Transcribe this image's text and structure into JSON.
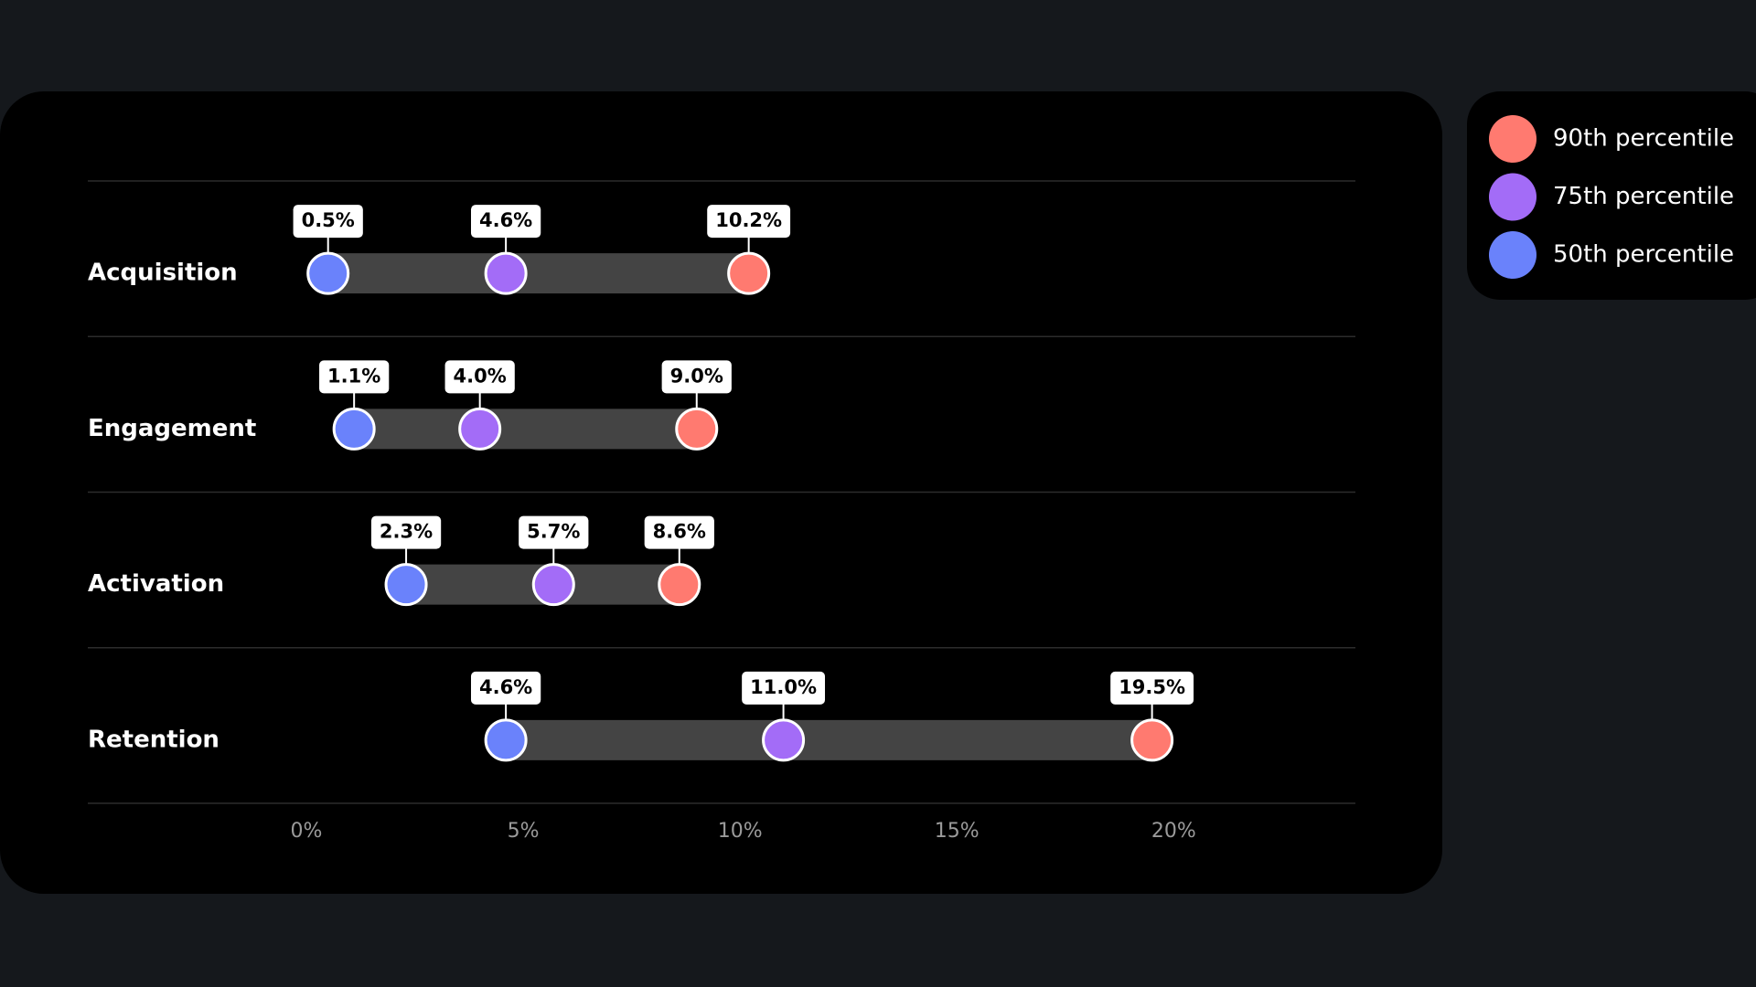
{
  "chart_data": {
    "type": "dumbbell",
    "categories": [
      "Acquisition",
      "Engagement",
      "Activation",
      "Retention"
    ],
    "series": [
      {
        "name": "90th percentile",
        "color": "#ff7a70",
        "values": [
          10.2,
          9.0,
          8.6,
          19.5
        ],
        "value_labels": [
          "10.2%",
          "9.0%",
          "8.6%",
          "19.5%"
        ]
      },
      {
        "name": "75th percentile",
        "color": "#a36cf7",
        "values": [
          4.6,
          4.0,
          5.7,
          11.0
        ],
        "value_labels": [
          "4.6%",
          "4.0%",
          "5.7%",
          "11.0%"
        ]
      },
      {
        "name": "50th percentile",
        "color": "#6a82fb",
        "values": [
          0.5,
          1.1,
          2.3,
          4.6
        ],
        "value_labels": [
          "0.5%",
          "1.1%",
          "2.3%",
          "4.6%"
        ]
      }
    ],
    "xlim": [
      0,
      24
    ],
    "xticks": [
      {
        "value": 0,
        "label": "0%"
      },
      {
        "value": 5,
        "label": "5%"
      },
      {
        "value": 10,
        "label": "10%"
      },
      {
        "value": 15,
        "label": "15%"
      },
      {
        "value": 20,
        "label": "20%"
      }
    ]
  }
}
